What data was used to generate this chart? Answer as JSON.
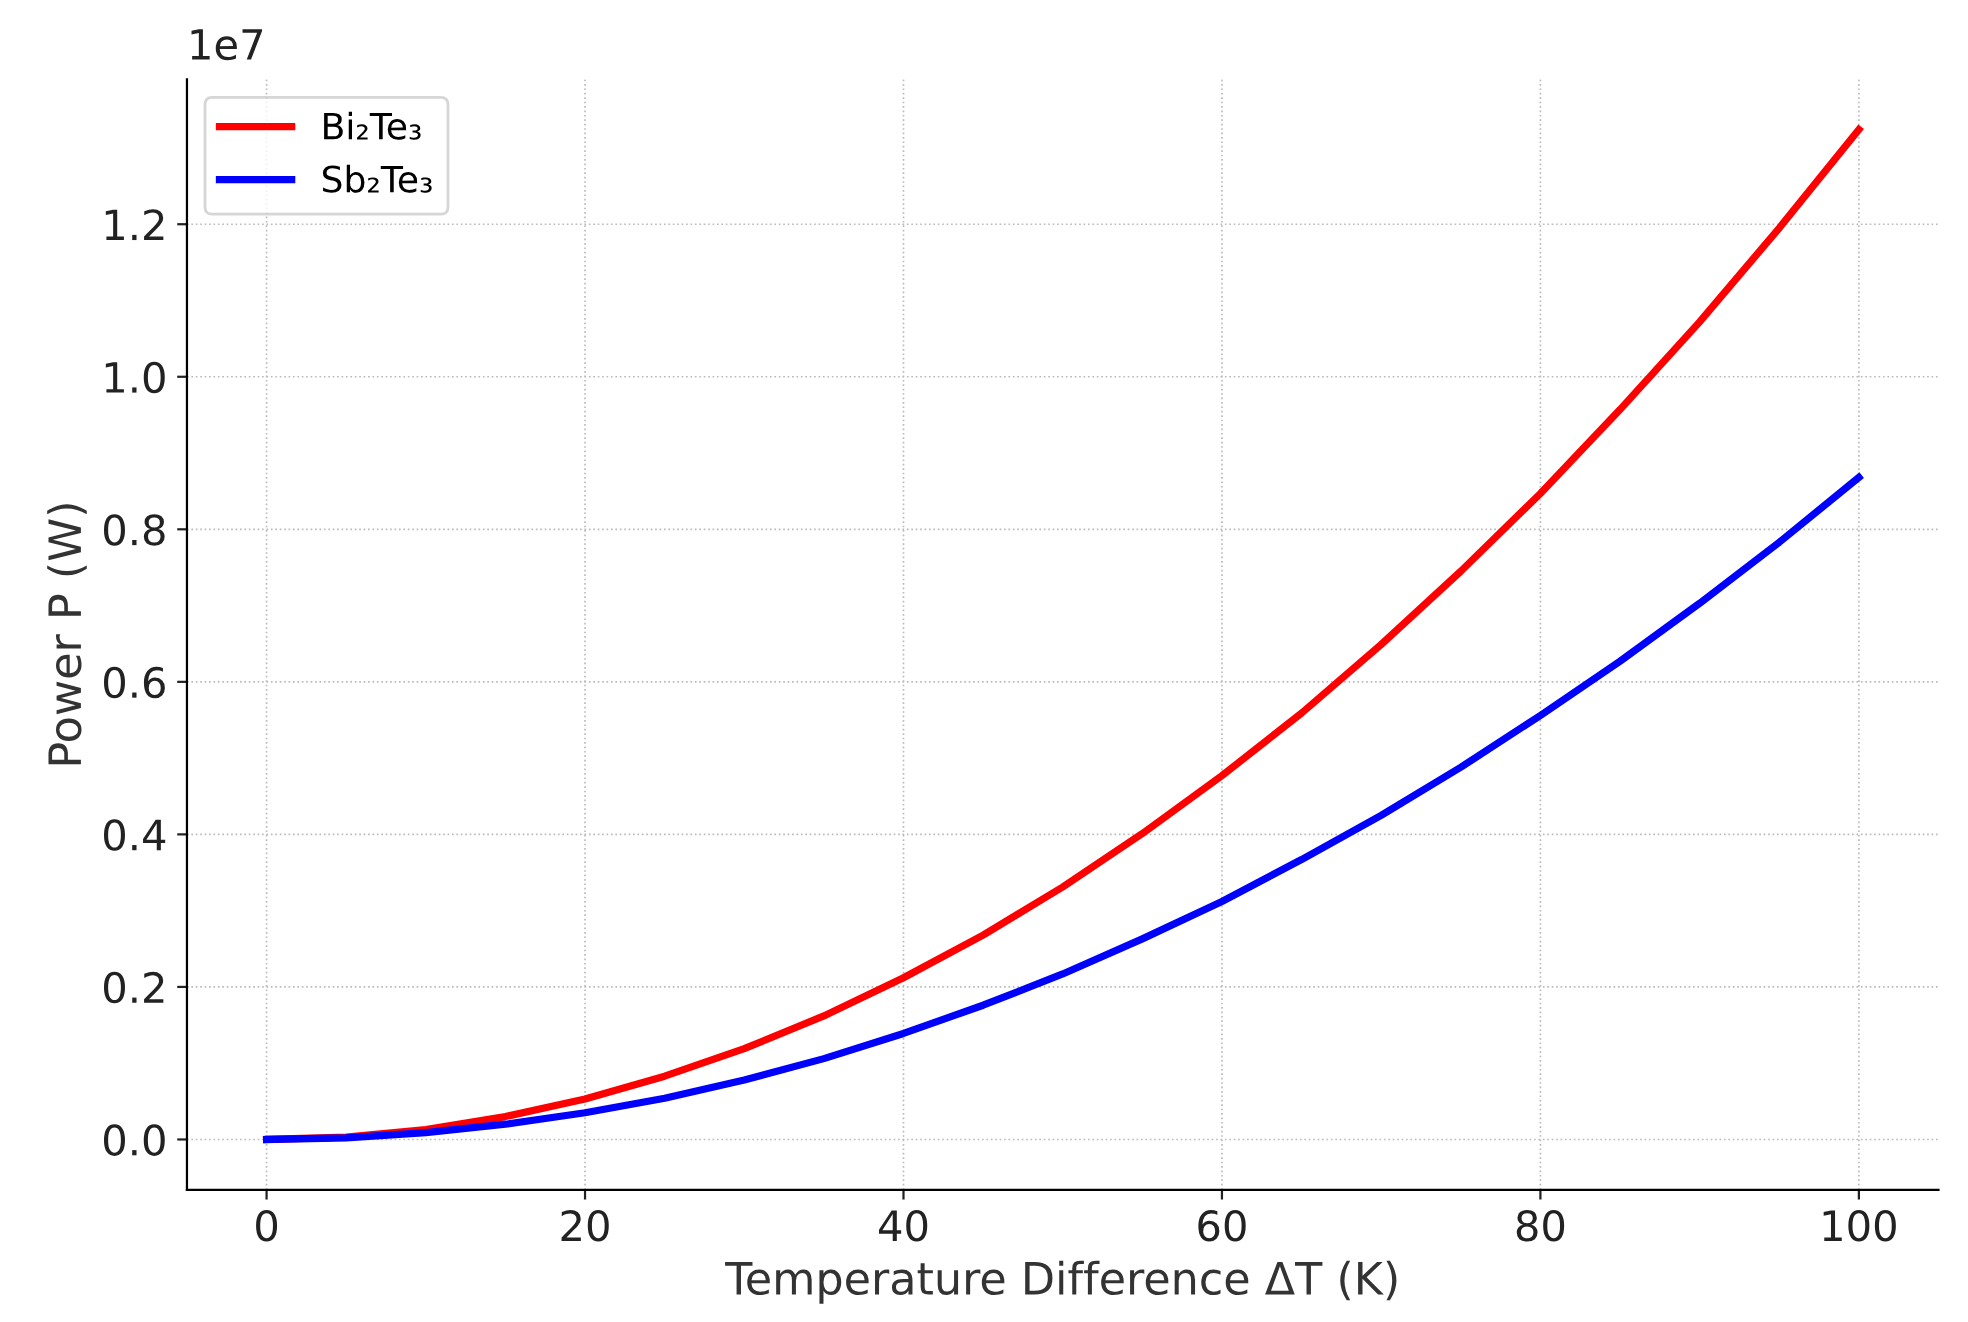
{
  "chart_data": {
    "type": "line",
    "xlabel": "Temperature Difference ΔT (K)",
    "ylabel": "Power P (W)",
    "x": [
      0,
      5,
      10,
      15,
      20,
      25,
      30,
      35,
      40,
      45,
      50,
      55,
      60,
      65,
      70,
      75,
      80,
      85,
      90,
      95,
      100
    ],
    "series": [
      {
        "name": "Bi₂Te₃",
        "color": "#ff0000",
        "values": [
          0,
          0.003,
          0.013,
          0.03,
          0.053,
          0.083,
          0.119,
          0.162,
          0.212,
          0.268,
          0.331,
          0.401,
          0.477,
          0.559,
          0.649,
          0.745,
          0.847,
          0.957,
          1.072,
          1.195,
          1.324
        ]
      },
      {
        "name": "Sb₂Te₃",
        "color": "#0000ff",
        "values": [
          0,
          0.002,
          0.009,
          0.02,
          0.035,
          0.054,
          0.078,
          0.106,
          0.139,
          0.176,
          0.217,
          0.263,
          0.312,
          0.367,
          0.425,
          0.488,
          0.556,
          0.627,
          0.703,
          0.783,
          0.868
        ]
      }
    ],
    "xlim": [
      -5,
      105
    ],
    "xticks": [
      0,
      20,
      40,
      60,
      80,
      100
    ],
    "ylim": [
      -0.066,
      1.39
    ],
    "yticks": [
      {
        "value": 0,
        "label": "0.0"
      },
      0.2,
      0.4,
      0.6,
      0.8,
      {
        "value": 1,
        "label": "1.0"
      },
      1.2
    ],
    "annotations": [
      "1e7"
    ],
    "grid": true,
    "legend": "top left",
    "line_style": "solid",
    "marker": "none"
  }
}
